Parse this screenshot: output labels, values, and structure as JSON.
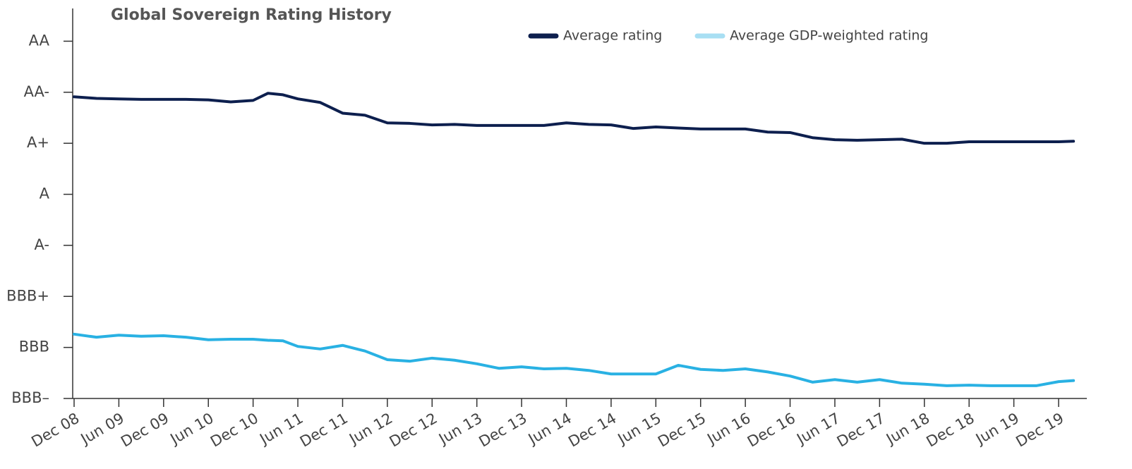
{
  "chart_data": {
    "type": "line",
    "title": "Global Sovereign Rating History",
    "x": [
      0,
      3,
      6,
      9,
      12,
      15,
      18,
      21,
      24,
      26,
      28,
      30,
      33,
      36,
      39,
      42,
      45,
      48,
      51,
      54,
      57,
      60,
      63,
      66,
      69,
      72,
      75,
      78,
      81,
      84,
      87,
      90,
      93,
      96,
      99,
      102,
      105,
      108,
      111,
      114,
      117,
      120,
      123,
      126,
      129,
      132,
      134
    ],
    "series": [
      {
        "name": "Average rating",
        "color": "#0d1f4e",
        "values": [
          15.91,
          15.88,
          15.87,
          15.86,
          15.86,
          15.86,
          15.85,
          15.81,
          15.84,
          15.98,
          15.95,
          15.87,
          15.8,
          15.59,
          15.55,
          15.4,
          15.39,
          15.36,
          15.37,
          15.35,
          15.35,
          15.35,
          15.35,
          15.4,
          15.37,
          15.36,
          15.29,
          15.32,
          15.3,
          15.28,
          15.28,
          15.28,
          15.22,
          15.21,
          15.11,
          15.07,
          15.06,
          15.07,
          15.08,
          15.0,
          15.0,
          15.03,
          15.03,
          15.03,
          15.03,
          15.03,
          15.04
        ]
      },
      {
        "name": "Average GDP-weighted rating",
        "color": "#29b1e3",
        "values": [
          11.26,
          11.2,
          11.24,
          11.22,
          11.23,
          11.2,
          11.15,
          11.16,
          11.16,
          11.14,
          11.13,
          11.02,
          10.97,
          11.04,
          10.93,
          10.76,
          10.73,
          10.79,
          10.75,
          10.68,
          10.59,
          10.62,
          10.58,
          10.59,
          10.55,
          10.48,
          10.48,
          10.48,
          10.65,
          10.57,
          10.55,
          10.58,
          10.52,
          10.44,
          10.32,
          10.37,
          10.32,
          10.37,
          10.3,
          10.28,
          10.25,
          10.26,
          10.25,
          10.25,
          10.25,
          10.33,
          10.35
        ]
      }
    ],
    "xlim": [
      0,
      137
    ],
    "xticks": [
      {
        "value": 0,
        "label": "Dec 08"
      },
      {
        "value": 6,
        "label": "Jun 09"
      },
      {
        "value": 12,
        "label": "Dec 09"
      },
      {
        "value": 18,
        "label": "Jun 10"
      },
      {
        "value": 24,
        "label": "Dec 10"
      },
      {
        "value": 30,
        "label": "Jun 11"
      },
      {
        "value": 36,
        "label": "Dec 11"
      },
      {
        "value": 42,
        "label": "Jun 12"
      },
      {
        "value": 48,
        "label": "Dec 12"
      },
      {
        "value": 54,
        "label": "Jun 13"
      },
      {
        "value": 60,
        "label": "Dec 13"
      },
      {
        "value": 66,
        "label": "Jun 14"
      },
      {
        "value": 72,
        "label": "Dec 14"
      },
      {
        "value": 78,
        "label": "Jun 15"
      },
      {
        "value": 84,
        "label": "Dec 15"
      },
      {
        "value": 90,
        "label": "Jun 16"
      },
      {
        "value": 96,
        "label": "Dec 16"
      },
      {
        "value": 102,
        "label": "Jun 17"
      },
      {
        "value": 108,
        "label": "Dec 17"
      },
      {
        "value": 114,
        "label": "Jun 18"
      },
      {
        "value": 120,
        "label": "Dec 18"
      },
      {
        "value": 126,
        "label": "Jun 19"
      },
      {
        "value": 132,
        "label": "Dec 19"
      }
    ],
    "ylim": [
      10,
      17.6
    ],
    "yticks": [
      {
        "value": 10,
        "label": "BBB–"
      },
      {
        "value": 11,
        "label": "BBB"
      },
      {
        "value": 12,
        "label": "BBB+"
      },
      {
        "value": 13,
        "label": "A-"
      },
      {
        "value": 14,
        "label": "A"
      },
      {
        "value": 15,
        "label": "A+"
      },
      {
        "value": 16,
        "label": "AA-"
      },
      {
        "value": 17,
        "label": "AA"
      }
    ],
    "legend": "top"
  }
}
